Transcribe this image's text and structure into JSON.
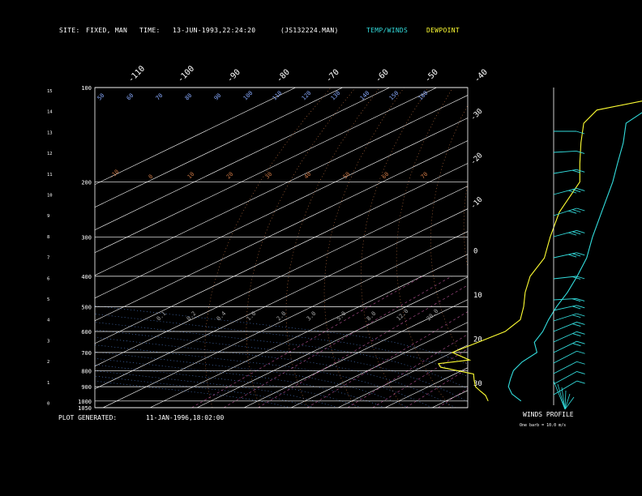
{
  "header": {
    "site_label": "SITE:",
    "site_value": "FIXED, MAN",
    "time_label": "TIME:",
    "time_value": "13-JUN-1993,22:24:20",
    "file_name": "(JS132224.MAN)",
    "temp_winds_label": "TEMP/WINDS",
    "dewpoint_label": "DEWPOINT"
  },
  "footer": {
    "plot_generated_label": "PLOT GENERATED:",
    "plot_generated_value": "11-JAN-1996,18:02:00"
  },
  "wind_panel": {
    "title": "WINDS PROFILE",
    "note": "One barb = 10.0 m/s"
  },
  "colors": {
    "temperature": "#33dddd",
    "dewpoint": "#ffff33",
    "isobar": "#ffffff",
    "isotherm": "#ffffff",
    "dry_adiabat": "#cc7744",
    "moist_adiabat": "#5588dd",
    "mixing_ratio": "#bb5599"
  },
  "chart_data": {
    "type": "line",
    "title": "",
    "pressure_levels_hpa": [
      "100",
      "200",
      "300",
      "400",
      "500",
      "600",
      "700",
      "800",
      "900",
      "1000",
      "1050"
    ],
    "km_ticks": [
      "15",
      "14",
      "13",
      "12",
      "11",
      "10",
      "9",
      "8",
      "7",
      "6",
      "5",
      "4",
      "3",
      "2",
      "1",
      "0"
    ],
    "top_temperature_labels": [
      "-110",
      "-100",
      "-90",
      "-80",
      "-70",
      "-60",
      "-50",
      "-40"
    ],
    "right_temperature_labels": [
      "-30",
      "-20",
      "-10",
      "0",
      "10",
      "20",
      "30"
    ],
    "dry_adiabat_labels": [
      "-10",
      "0",
      "10",
      "20",
      "30",
      "40",
      "50",
      "60",
      "70"
    ],
    "mixing_ratio_labels": [
      "0.1",
      "0.2",
      "0.4",
      "1.0",
      "2.0",
      "3.0",
      "5.0",
      "8.0",
      "12.0",
      "20.0"
    ],
    "upper_labels": [
      "50",
      "60",
      "70",
      "80",
      "90",
      "100",
      "110",
      "120",
      "130",
      "140",
      "150",
      "160"
    ],
    "temperature_profile": [
      {
        "p": 1000,
        "t": 26
      },
      {
        "p": 950,
        "t": 21
      },
      {
        "p": 900,
        "t": 17
      },
      {
        "p": 850,
        "t": 14
      },
      {
        "p": 800,
        "t": 11
      },
      {
        "p": 750,
        "t": 9
      },
      {
        "p": 700,
        "t": 8
      },
      {
        "p": 650,
        "t": 3
      },
      {
        "p": 600,
        "t": 0
      },
      {
        "p": 550,
        "t": -4
      },
      {
        "p": 500,
        "t": -8
      },
      {
        "p": 450,
        "t": -12
      },
      {
        "p": 400,
        "t": -17
      },
      {
        "p": 350,
        "t": -23
      },
      {
        "p": 300,
        "t": -31
      },
      {
        "p": 250,
        "t": -40
      },
      {
        "p": 200,
        "t": -51
      },
      {
        "p": 175,
        "t": -58
      },
      {
        "p": 150,
        "t": -66
      },
      {
        "p": 130,
        "t": -74
      },
      {
        "p": 115,
        "t": -76
      },
      {
        "p": 108,
        "t": -70
      },
      {
        "p": 103,
        "t": -62
      },
      {
        "p": 100,
        "t": -60
      }
    ],
    "dewpoint_profile": [
      {
        "p": 1000,
        "t": 19
      },
      {
        "p": 960,
        "t": 16
      },
      {
        "p": 930,
        "t": 13
      },
      {
        "p": 900,
        "t": 10
      },
      {
        "p": 860,
        "t": 7
      },
      {
        "p": 820,
        "t": 4
      },
      {
        "p": 780,
        "t": -6
      },
      {
        "p": 760,
        "t": -8
      },
      {
        "p": 740,
        "t": -3
      },
      {
        "p": 700,
        "t": -10
      },
      {
        "p": 650,
        "t": -9
      },
      {
        "p": 600,
        "t": -8
      },
      {
        "p": 550,
        "t": -10
      },
      {
        "p": 500,
        "t": -15
      },
      {
        "p": 450,
        "t": -21
      },
      {
        "p": 400,
        "t": -27
      },
      {
        "p": 350,
        "t": -32
      },
      {
        "p": 300,
        "t": -40
      },
      {
        "p": 250,
        "t": -49
      },
      {
        "p": 200,
        "t": -58
      },
      {
        "p": 175,
        "t": -66
      },
      {
        "p": 150,
        "t": -75
      },
      {
        "p": 130,
        "t": -83
      },
      {
        "p": 118,
        "t": -86
      },
      {
        "p": 110,
        "t": -80
      },
      {
        "p": 103,
        "t": -76
      },
      {
        "p": 100,
        "t": -74
      }
    ],
    "winds_profile": [
      {
        "km": 13.0,
        "speed_ms": 12,
        "dir_deg": 270
      },
      {
        "km": 12.0,
        "speed_ms": 14,
        "dir_deg": 265
      },
      {
        "km": 11.0,
        "speed_ms": 22,
        "dir_deg": 255
      },
      {
        "km": 10.0,
        "speed_ms": 30,
        "dir_deg": 245
      },
      {
        "km": 9.0,
        "speed_ms": 25,
        "dir_deg": 240
      },
      {
        "km": 8.0,
        "speed_ms": 28,
        "dir_deg": 245
      },
      {
        "km": 7.0,
        "speed_ms": 26,
        "dir_deg": 250
      },
      {
        "km": 6.0,
        "speed_ms": 20,
        "dir_deg": 260
      },
      {
        "km": 5.0,
        "speed_ms": 24,
        "dir_deg": 265
      },
      {
        "km": 4.5,
        "speed_ms": 20,
        "dir_deg": 250
      },
      {
        "km": 4.0,
        "speed_ms": 22,
        "dir_deg": 240
      },
      {
        "km": 3.5,
        "speed_ms": 18,
        "dir_deg": 230
      },
      {
        "km": 3.0,
        "speed_ms": 16,
        "dir_deg": 225
      },
      {
        "km": 2.5,
        "speed_ms": 15,
        "dir_deg": 220
      },
      {
        "km": 2.0,
        "speed_ms": 13,
        "dir_deg": 215
      },
      {
        "km": 1.5,
        "speed_ms": 12,
        "dir_deg": 215
      },
      {
        "km": 1.0,
        "speed_ms": 10,
        "dir_deg": 210
      },
      {
        "km": 0.5,
        "speed_ms": 8,
        "dir_deg": 200
      }
    ]
  }
}
